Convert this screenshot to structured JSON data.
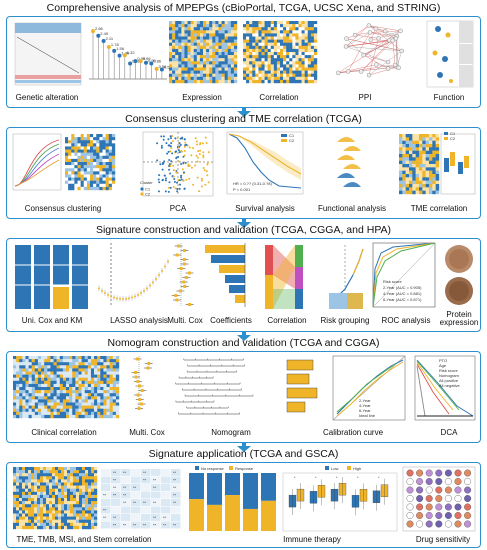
{
  "sections": [
    {
      "title": "Comprehensive analysis of MPEPGs (cBioPortal, TCGA, UCSC Xena, and STRING)",
      "labels": [
        "Genetic alteration",
        "Expression",
        "Correlation",
        "PPI",
        "Function"
      ],
      "lollipop_values": [
        "2.66",
        "2.40",
        "2.11",
        "1.78",
        "1.56",
        "1.30",
        "1.32",
        "0.86",
        "0.99",
        "0.99",
        "0.90",
        "0.86",
        "0.56",
        "0.53"
      ]
    },
    {
      "title": "Consensus clustering and TME correlation (TCGA)",
      "labels": [
        "Consensus clustering",
        "PCA",
        "Survival analysis",
        "Functional analysis",
        "TME correlation"
      ],
      "cluster_legend": [
        "C1",
        "C2"
      ],
      "pca_legend_title": "Cluster",
      "hr_text": "HR = 0.?? (0.31-0.?8)",
      "p_text": "P = 0.001"
    },
    {
      "title": "Signature construction and validation (TCGA, CGGA, and HPA)",
      "labels": [
        "Uni. Cox and KM",
        "LASSO analysis",
        "Multi. Cox",
        "Coefficients",
        "Correlation",
        "Risk grouping",
        "ROC analysis",
        "Protein expression"
      ],
      "roc_legend_title": "Risk score",
      "roc_legend": [
        "2-Year (AUC = 0.905)",
        "4-Year (AUC = 0.881)",
        "6-Year (AUC = 0.871)"
      ]
    },
    {
      "title": "Nomogram construction and validation (TCGA and CGGA)",
      "labels": [
        "Clinical correlation",
        "Multi. Cox",
        "Nomogram",
        "Calibration curve",
        "DCA"
      ],
      "calibration_legend": [
        "2-Year",
        "4-Year",
        "6-Year",
        "Ideal line"
      ],
      "dca_legend": [
        "PTO",
        "Age",
        "Risk score",
        "Nomogram",
        "All positive",
        "All negative"
      ]
    },
    {
      "title": "Signature application (TCGA and GSCA)",
      "labels": [
        "TME, TMB, MSI, and Stem correlation",
        "Immune therapy",
        "Drug sensitivity"
      ],
      "bar_legend": [
        "No response",
        "Response"
      ],
      "box_legend": [
        "Low",
        "High"
      ]
    }
  ],
  "colors": {
    "blue": "#2e75b6",
    "gold": "#f0b429",
    "panel_border": "#2e8fcf",
    "lightblue": "#9cc4e4"
  },
  "icons": [
    "down-arrow-icon"
  ]
}
